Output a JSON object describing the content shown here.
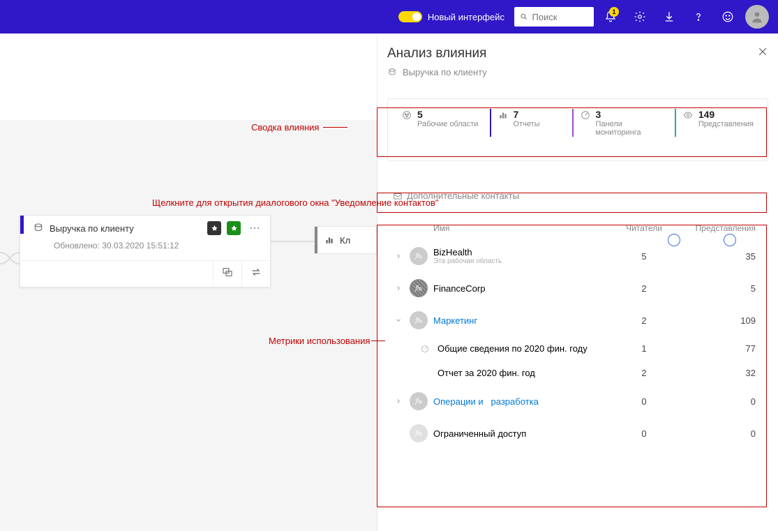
{
  "header": {
    "toggle_label": "Новый интерфейс",
    "search_placeholder": "Поиск",
    "notification_count": "1"
  },
  "card": {
    "title": "Выручка по клиенту",
    "updated": "Обновлено: 30.03.2020 15:51:12"
  },
  "card2": {
    "title": "Кл"
  },
  "panel": {
    "title": "Анализ влияния",
    "subtitle": "Выручка по клиенту",
    "contacts_strip": "Дополнительные контакты",
    "summary": [
      {
        "value": "5",
        "label": "Рабочие области",
        "bar": "#666666"
      },
      {
        "value": "7",
        "label": "Отчеты",
        "bar": "#2e18c7"
      },
      {
        "value": "3",
        "label": "Панели мониторинга",
        "bar": "#a04bd6"
      },
      {
        "value": "149",
        "label": "Представления",
        "bar": "#2aa6a0"
      }
    ],
    "columns": {
      "name": "Имя",
      "readers": "Читатели",
      "views": "Представления"
    },
    "rows": [
      {
        "type": "ws",
        "expander": "right",
        "name": "BizHealth",
        "sub": "Эта рабочая область",
        "readers": "5",
        "views": "35",
        "icon_bg": "#cccccc"
      },
      {
        "type": "ws",
        "expander": "right",
        "name": "FinanceCorp",
        "sub": "",
        "readers": "2",
        "views": "5",
        "icon_bg": "#888888",
        "pattern": true
      },
      {
        "type": "ws",
        "expander": "down",
        "name": "Маркетинг",
        "sub": "",
        "readers": "2",
        "views": "109",
        "icon_bg": "#cccccc",
        "link": true
      },
      {
        "type": "child",
        "icon": "dash",
        "name": "Общие сведения по 2020 фин. году",
        "readers": "1",
        "views": "77"
      },
      {
        "type": "child",
        "icon": "",
        "name": "Отчет за 2020 фин. год",
        "readers": "2",
        "views": "32"
      },
      {
        "type": "ws",
        "expander": "right",
        "name_parts": [
          "Операции и",
          "разработка"
        ],
        "sub": "",
        "readers": "0",
        "views": "0",
        "icon_bg": "#cccccc",
        "link": true
      },
      {
        "type": "ws",
        "expander": "",
        "name": "Ограниченный доступ",
        "sub": "",
        "readers": "0",
        "views": "0",
        "icon_bg": "#e0e0e0"
      }
    ]
  },
  "annotations": {
    "summary": "Сводка влияния",
    "contacts": "Щелкните для открытия диалогового окна \"Уведомление контактов\"",
    "usage": "Метрики использования"
  }
}
